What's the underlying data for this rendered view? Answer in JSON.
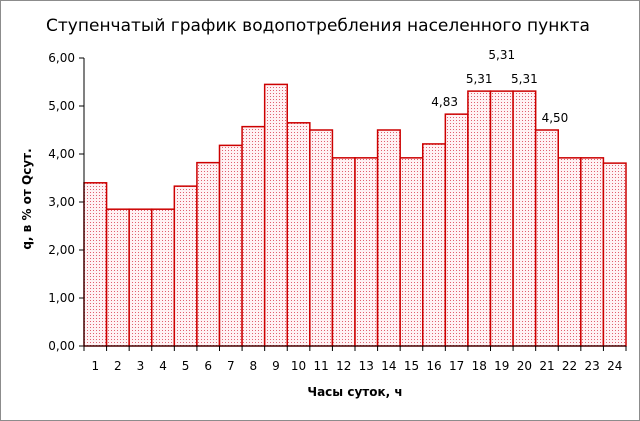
{
  "chart_data": {
    "type": "bar",
    "title": "Ступенчатый график водопотребления населенного пункта",
    "xlabel": "Часы суток, ч",
    "ylabel": "q, в % от Qсут.",
    "categories": [
      "1",
      "2",
      "3",
      "4",
      "5",
      "6",
      "7",
      "8",
      "9",
      "10",
      "11",
      "12",
      "13",
      "14",
      "15",
      "16",
      "17",
      "18",
      "19",
      "20",
      "21",
      "22",
      "23",
      "24"
    ],
    "values": [
      3.4,
      2.85,
      2.85,
      2.85,
      3.33,
      3.82,
      4.18,
      4.57,
      5.45,
      4.65,
      4.5,
      3.92,
      3.92,
      4.5,
      3.92,
      4.21,
      4.83,
      5.31,
      5.31,
      5.31,
      4.5,
      3.92,
      3.92,
      3.81
    ],
    "data_labels": [
      {
        "index": 16,
        "text": "4,83"
      },
      {
        "index": 17,
        "text": "5,31"
      },
      {
        "index": 18,
        "text": "5,31"
      },
      {
        "index": 19,
        "text": "5,31"
      },
      {
        "index": 20,
        "text": "4,50"
      }
    ],
    "ylim": [
      0,
      6
    ],
    "yticks": [
      "0,00",
      "1,00",
      "2,00",
      "3,00",
      "4,00",
      "5,00",
      "6,00"
    ],
    "grid": false,
    "legend": "none",
    "bar_fill": "#fde3e8",
    "bar_edge": "#cc0000"
  }
}
